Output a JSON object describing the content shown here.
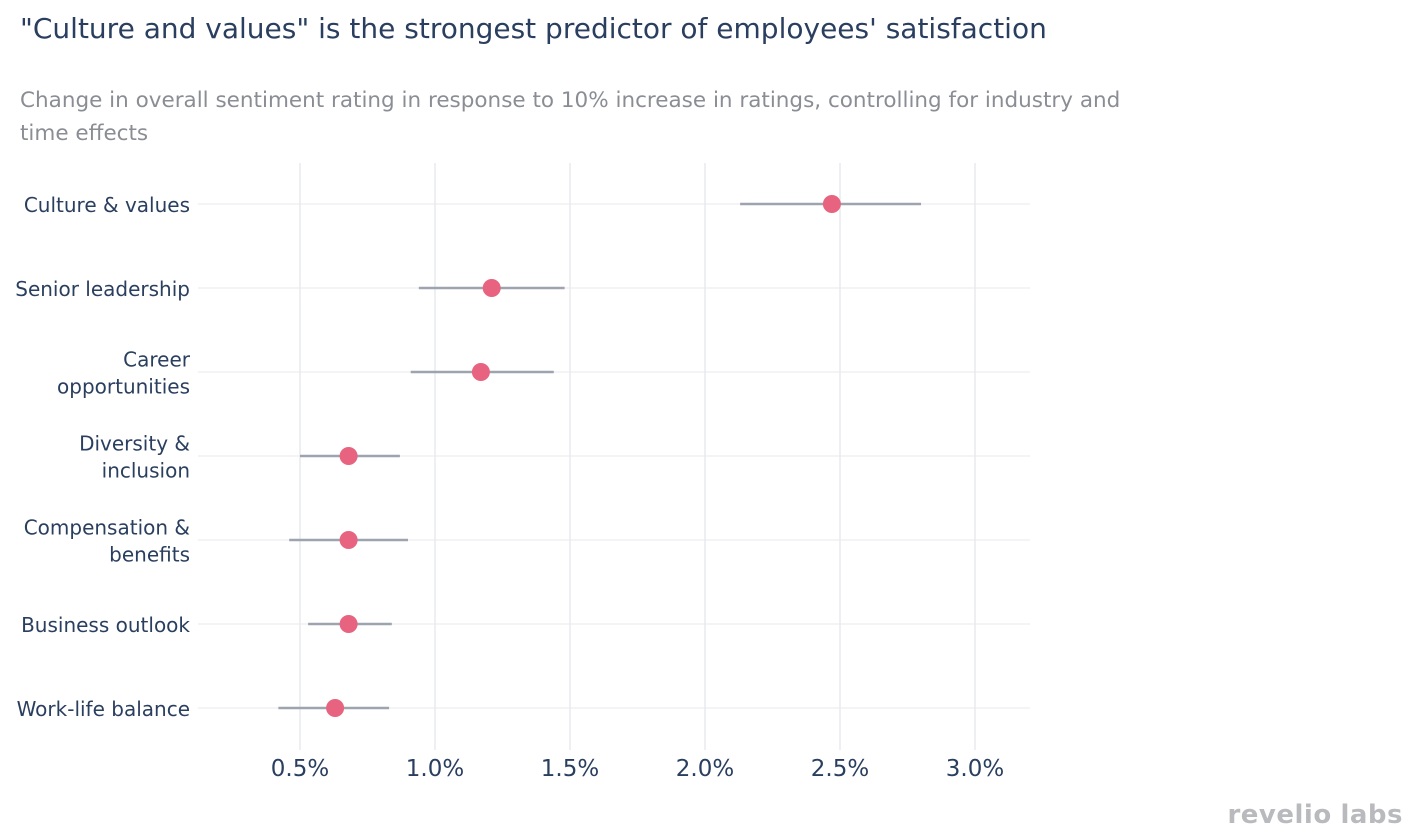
{
  "title": "\"Culture and values\" is the strongest predictor of employees' satisfaction",
  "subtitle": "Change in overall sentiment rating in response to 10% increase in ratings, controlling for industry and time effects",
  "brand": {
    "word1": "revelio",
    "word2": "labs"
  },
  "colors": {
    "point": "#e8637f",
    "errorbar": "#9ea3b0",
    "grid": "#e9eaee",
    "text": "#2a3f5f"
  },
  "chart_data": {
    "type": "scatter",
    "orientation": "horizontal",
    "x_unit": "%",
    "xlim": [
      0.2,
      3.2
    ],
    "xticks": [
      0.5,
      1.0,
      1.5,
      2.0,
      2.5,
      3.0
    ],
    "xtick_labels": [
      "0.5%",
      "1.0%",
      "1.5%",
      "2.0%",
      "2.5%",
      "3.0%"
    ],
    "grid": true,
    "categories": [
      {
        "label": [
          "Culture & values"
        ],
        "value": 2.47,
        "low": 2.13,
        "high": 2.8
      },
      {
        "label": [
          "Senior leadership"
        ],
        "value": 1.21,
        "low": 0.94,
        "high": 1.48
      },
      {
        "label": [
          "Career",
          "opportunities"
        ],
        "value": 1.17,
        "low": 0.91,
        "high": 1.44
      },
      {
        "label": [
          "Diversity &",
          "inclusion"
        ],
        "value": 0.68,
        "low": 0.5,
        "high": 0.87
      },
      {
        "label": [
          "Compensation &",
          "benefits"
        ],
        "value": 0.68,
        "low": 0.46,
        "high": 0.9
      },
      {
        "label": [
          "Business outlook"
        ],
        "value": 0.68,
        "low": 0.53,
        "high": 0.84
      },
      {
        "label": [
          "Work-life balance"
        ],
        "value": 0.63,
        "low": 0.42,
        "high": 0.83
      }
    ]
  }
}
